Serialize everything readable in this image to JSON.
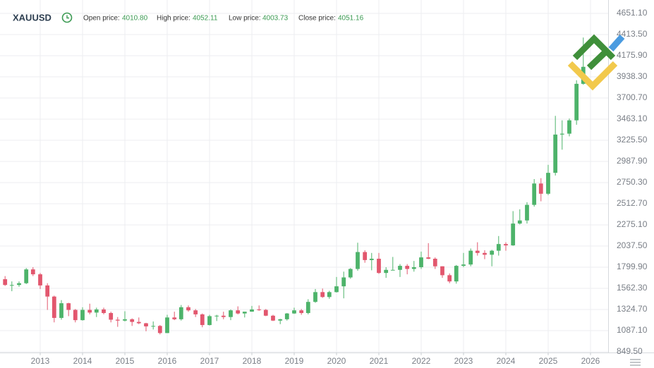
{
  "header": {
    "symbol": "XAUUSD",
    "fields": [
      {
        "label": "Open price:",
        "value": "4010.80"
      },
      {
        "label": "High price:",
        "value": "4052.11"
      },
      {
        "label": "Low price:",
        "value": "4003.73"
      },
      {
        "label": "Close price:",
        "value": "4051.16"
      }
    ]
  },
  "chart_data": {
    "type": "candlestick",
    "title": "XAUUSD",
    "up_color": "#4db36a",
    "down_color": "#e2576e",
    "grid": true,
    "axis_side": "right",
    "xlim": [
      2012.05,
      2026.417
    ],
    "xticks": [
      2013,
      2014,
      2015,
      2016,
      2017,
      2018,
      2019,
      2020,
      2021,
      2022,
      2023,
      2024,
      2025,
      2026
    ],
    "ylim": [
      841.6,
      4801.6
    ],
    "yticks": [
      {
        "value": 849.5,
        "label": "849.50"
      },
      {
        "value": 1087.1,
        "label": "1087.10"
      },
      {
        "value": 1324.7,
        "label": "1324.70"
      },
      {
        "value": 1562.3,
        "label": "1562.30"
      },
      {
        "value": 1799.9,
        "label": "1799.90"
      },
      {
        "value": 2037.5,
        "label": "2037.50"
      },
      {
        "value": 2275.1,
        "label": "2275.10"
      },
      {
        "value": 2512.7,
        "label": "2512.70"
      },
      {
        "value": 2750.3,
        "label": "2750.30"
      },
      {
        "value": 2987.9,
        "label": "2987.90"
      },
      {
        "value": 3225.5,
        "label": "3225.50"
      },
      {
        "value": 3463.1,
        "label": "3463.10"
      },
      {
        "value": 3700.7,
        "label": "3700.70"
      },
      {
        "value": 3938.3,
        "label": "3938.30"
      },
      {
        "value": 4175.9,
        "label": "4175.90"
      },
      {
        "value": 4413.5,
        "label": "4413.50"
      },
      {
        "value": 4651.1,
        "label": "4651.10"
      }
    ],
    "x": [
      2012.17,
      2012.33,
      2012.5,
      2012.67,
      2012.83,
      2013.0,
      2013.17,
      2013.33,
      2013.5,
      2013.67,
      2013.83,
      2014.0,
      2014.17,
      2014.33,
      2014.5,
      2014.67,
      2014.83,
      2015.0,
      2015.17,
      2015.33,
      2015.5,
      2015.67,
      2015.83,
      2016.0,
      2016.17,
      2016.33,
      2016.5,
      2016.67,
      2016.83,
      2017.0,
      2017.17,
      2017.33,
      2017.5,
      2017.67,
      2017.83,
      2018.0,
      2018.17,
      2018.33,
      2018.5,
      2018.67,
      2018.83,
      2019.0,
      2019.17,
      2019.33,
      2019.5,
      2019.67,
      2019.83,
      2020.0,
      2020.17,
      2020.33,
      2020.5,
      2020.67,
      2020.83,
      2021.0,
      2021.17,
      2021.33,
      2021.5,
      2021.67,
      2021.83,
      2022.0,
      2022.17,
      2022.33,
      2022.5,
      2022.67,
      2022.83,
      2023.0,
      2023.17,
      2023.33,
      2023.5,
      2023.67,
      2023.83,
      2024.0,
      2024.17,
      2024.33,
      2024.5,
      2024.67,
      2024.83,
      2025.0,
      2025.17,
      2025.33,
      2025.5,
      2025.67,
      2025.83
    ],
    "open": [
      1665,
      1600,
      1600,
      1620,
      1775,
      1720,
      1595,
      1470,
      1230,
      1395,
      1320,
      1205,
      1320,
      1290,
      1325,
      1285,
      1210,
      1200,
      1215,
      1185,
      1170,
      1135,
      1140,
      1060,
      1235,
      1215,
      1350,
      1315,
      1270,
      1150,
      1250,
      1255,
      1240,
      1315,
      1280,
      1300,
      1325,
      1320,
      1255,
      1200,
      1215,
      1280,
      1315,
      1285,
      1410,
      1520,
      1465,
      1520,
      1585,
      1685,
      1780,
      1970,
      1880,
      1895,
      1735,
      1770,
      1770,
      1815,
      1780,
      1800,
      1910,
      1895,
      1810,
      1710,
      1640,
      1815,
      1830,
      1985,
      1960,
      1940,
      1985,
      2060,
      2045,
      2290,
      2325,
      2500,
      2740,
      2625,
      2860,
      3290,
      3300,
      3450,
      3860
    ],
    "high": [
      1700,
      1640,
      1640,
      1790,
      1800,
      1735,
      1620,
      1480,
      1430,
      1400,
      1330,
      1350,
      1390,
      1345,
      1345,
      1300,
      1240,
      1305,
      1225,
      1235,
      1175,
      1190,
      1150,
      1265,
      1300,
      1375,
      1370,
      1330,
      1280,
      1265,
      1265,
      1300,
      1325,
      1360,
      1300,
      1365,
      1370,
      1330,
      1265,
      1220,
      1285,
      1345,
      1330,
      1440,
      1555,
      1560,
      1535,
      1690,
      1750,
      1790,
      2075,
      1990,
      1960,
      1960,
      1800,
      1915,
      1835,
      1835,
      1870,
      1975,
      2070,
      1910,
      1810,
      1730,
      1825,
      1960,
      2010,
      2080,
      1990,
      1995,
      2150,
      2080,
      2430,
      2450,
      2530,
      2790,
      2800,
      2950,
      3500,
      3450,
      3470,
      3900,
      4380
    ],
    "low": [
      1590,
      1530,
      1580,
      1610,
      1700,
      1555,
      1320,
      1180,
      1210,
      1250,
      1180,
      1200,
      1270,
      1240,
      1270,
      1180,
      1130,
      1190,
      1140,
      1160,
      1080,
      1100,
      1045,
      1060,
      1205,
      1200,
      1300,
      1240,
      1125,
      1145,
      1195,
      1215,
      1205,
      1270,
      1235,
      1300,
      1310,
      1250,
      1195,
      1160,
      1200,
      1275,
      1265,
      1270,
      1400,
      1455,
      1445,
      1515,
      1450,
      1670,
      1760,
      1850,
      1765,
      1725,
      1680,
      1765,
      1690,
      1720,
      1750,
      1780,
      1890,
      1780,
      1680,
      1620,
      1615,
      1800,
      1810,
      1930,
      1890,
      1810,
      1930,
      1985,
      2040,
      2280,
      2290,
      2480,
      2540,
      2610,
      2830,
      3120,
      3270,
      3400,
      3850
    ],
    "close": [
      1600,
      1600,
      1620,
      1775,
      1720,
      1595,
      1470,
      1230,
      1395,
      1320,
      1205,
      1320,
      1290,
      1325,
      1285,
      1210,
      1200,
      1215,
      1185,
      1170,
      1135,
      1140,
      1060,
      1235,
      1215,
      1350,
      1315,
      1270,
      1150,
      1250,
      1255,
      1240,
      1315,
      1280,
      1300,
      1325,
      1320,
      1255,
      1200,
      1215,
      1280,
      1315,
      1285,
      1410,
      1520,
      1465,
      1520,
      1585,
      1685,
      1780,
      1970,
      1880,
      1895,
      1735,
      1770,
      1770,
      1815,
      1780,
      1800,
      1910,
      1895,
      1810,
      1710,
      1640,
      1815,
      1830,
      1985,
      1960,
      1940,
      1985,
      2060,
      2045,
      2290,
      2325,
      2500,
      2740,
      2625,
      2860,
      3290,
      3300,
      3450,
      3860,
      4051
    ]
  }
}
